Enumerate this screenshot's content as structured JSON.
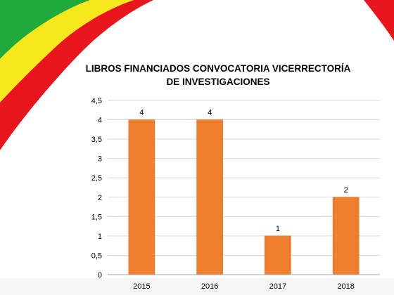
{
  "colors": {
    "bar": "#ef7f2f",
    "bar_dark": "#e46f1c",
    "grid": "#d9d9d9",
    "axis": "#a6a6a6",
    "flag_green": "#1faa3c",
    "flag_yellow": "#f7e81c",
    "flag_red": "#e8161c"
  },
  "chart_data": {
    "type": "bar",
    "title_lines": [
      "LIBROS FINANCIADOS CONVOCATORIA VICERRECTORÍA",
      "DE INVESTIGACIONES"
    ],
    "categories": [
      "2015",
      "2016",
      "2017",
      "2018"
    ],
    "values": [
      4,
      4,
      1,
      2
    ],
    "data_labels": [
      "4",
      "4",
      "1",
      "2"
    ],
    "ylim": [
      0,
      4.5
    ],
    "yticks": [
      "0",
      "0,5",
      "1",
      "1,5",
      "2",
      "2,5",
      "3",
      "3,5",
      "4",
      "4,5"
    ],
    "grid": true,
    "legend": "none"
  }
}
